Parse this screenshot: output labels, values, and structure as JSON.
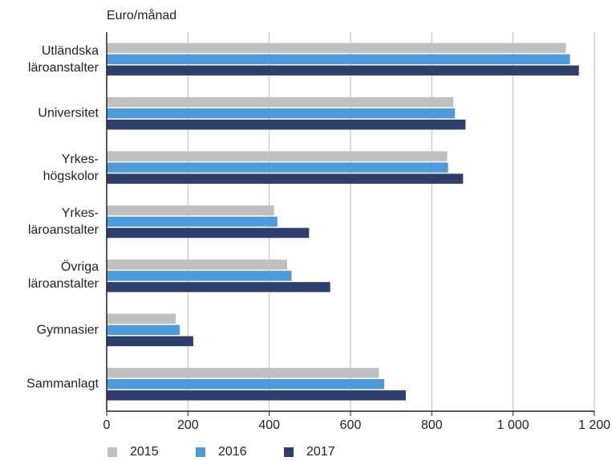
{
  "chart_data": {
    "type": "bar",
    "orientation": "horizontal",
    "x_label": "Euro/månad",
    "categories": [
      "Utländska\nläroanstalter",
      "Universitet",
      "Yrkes-\nhögskolor",
      "Yrkes-\nläroanstalter",
      "Övriga\nläroanstalter",
      "Gymnasier",
      "Sammanlagt"
    ],
    "series": [
      {
        "name": "2015",
        "color": "#c0c0c0",
        "values": [
          1130,
          853,
          838,
          412,
          444,
          170,
          670
        ]
      },
      {
        "name": "2016",
        "color": "#4e9bdc",
        "values": [
          1140,
          857,
          840,
          420,
          455,
          180,
          683
        ]
      },
      {
        "name": "2017",
        "color": "#2e3f6e",
        "values": [
          1162,
          883,
          877,
          498,
          550,
          213,
          736
        ]
      }
    ],
    "xlim": [
      0,
      1200
    ],
    "xticks": [
      0,
      200,
      400,
      600,
      800,
      {
        "value": 1000,
        "label": "1 000"
      },
      {
        "value": 1200,
        "label": "1 200"
      }
    ],
    "grid": true,
    "legend": "bottom"
  }
}
